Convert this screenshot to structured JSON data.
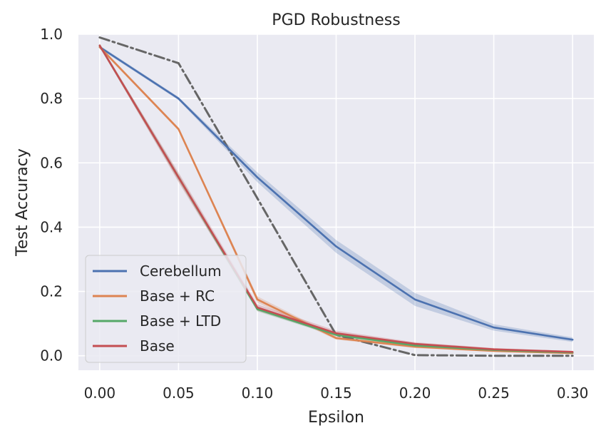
{
  "chart_data": {
    "type": "line",
    "title": "PGD Robustness",
    "xlabel": "Epsilon",
    "ylabel": "Test Accuracy",
    "xlim": [
      -0.0135,
      0.3135
    ],
    "ylim": [
      -0.045,
      1.0
    ],
    "xticks": [
      0.0,
      0.05,
      0.1,
      0.15,
      0.2,
      0.25,
      0.3
    ],
    "xtick_labels": [
      "0.00",
      "0.05",
      "0.10",
      "0.15",
      "0.20",
      "0.25",
      "0.30"
    ],
    "yticks": [
      0.0,
      0.2,
      0.4,
      0.6,
      0.8,
      1.0
    ],
    "ytick_labels": [
      "0.0",
      "0.2",
      "0.4",
      "0.6",
      "0.8",
      "1.0"
    ],
    "grid": true,
    "legend_position": "lower-left",
    "x": [
      0.0,
      0.05,
      0.1,
      0.15,
      0.2,
      0.25,
      0.3
    ],
    "series": [
      {
        "name": "Cerebellum",
        "color": "#4c72b0",
        "values": [
          0.96,
          0.8,
          0.555,
          0.34,
          0.175,
          0.088,
          0.05
        ],
        "band_lower": [
          0.955,
          0.795,
          0.54,
          0.32,
          0.155,
          0.078,
          0.043
        ],
        "band_upper": [
          0.965,
          0.805,
          0.57,
          0.36,
          0.195,
          0.098,
          0.057
        ]
      },
      {
        "name": "Base + RC",
        "color": "#dd8452",
        "values": [
          0.96,
          0.705,
          0.175,
          0.055,
          0.028,
          0.015,
          0.008
        ],
        "band_lower": [
          0.955,
          0.7,
          0.165,
          0.05,
          0.024,
          0.012,
          0.005
        ],
        "band_upper": [
          0.965,
          0.71,
          0.185,
          0.06,
          0.032,
          0.018,
          0.011
        ]
      },
      {
        "name": "Base + LTD",
        "color": "#55a868",
        "values": [
          0.965,
          0.555,
          0.145,
          0.065,
          0.032,
          0.018,
          0.01
        ],
        "band_lower": [
          0.96,
          0.545,
          0.138,
          0.06,
          0.028,
          0.015,
          0.007
        ],
        "band_upper": [
          0.97,
          0.565,
          0.152,
          0.07,
          0.036,
          0.021,
          0.013
        ]
      },
      {
        "name": "Base",
        "color": "#c44e52",
        "values": [
          0.965,
          0.555,
          0.15,
          0.07,
          0.037,
          0.02,
          0.012
        ],
        "band_lower": [
          0.96,
          0.54,
          0.14,
          0.062,
          0.032,
          0.016,
          0.009
        ],
        "band_upper": [
          0.97,
          0.57,
          0.16,
          0.078,
          0.042,
          0.024,
          0.015
        ]
      },
      {
        "color": "#666666",
        "dashed": true,
        "values": [
          0.99,
          0.91,
          0.49,
          0.065,
          0.002,
          0.0,
          0.0
        ]
      }
    ]
  }
}
